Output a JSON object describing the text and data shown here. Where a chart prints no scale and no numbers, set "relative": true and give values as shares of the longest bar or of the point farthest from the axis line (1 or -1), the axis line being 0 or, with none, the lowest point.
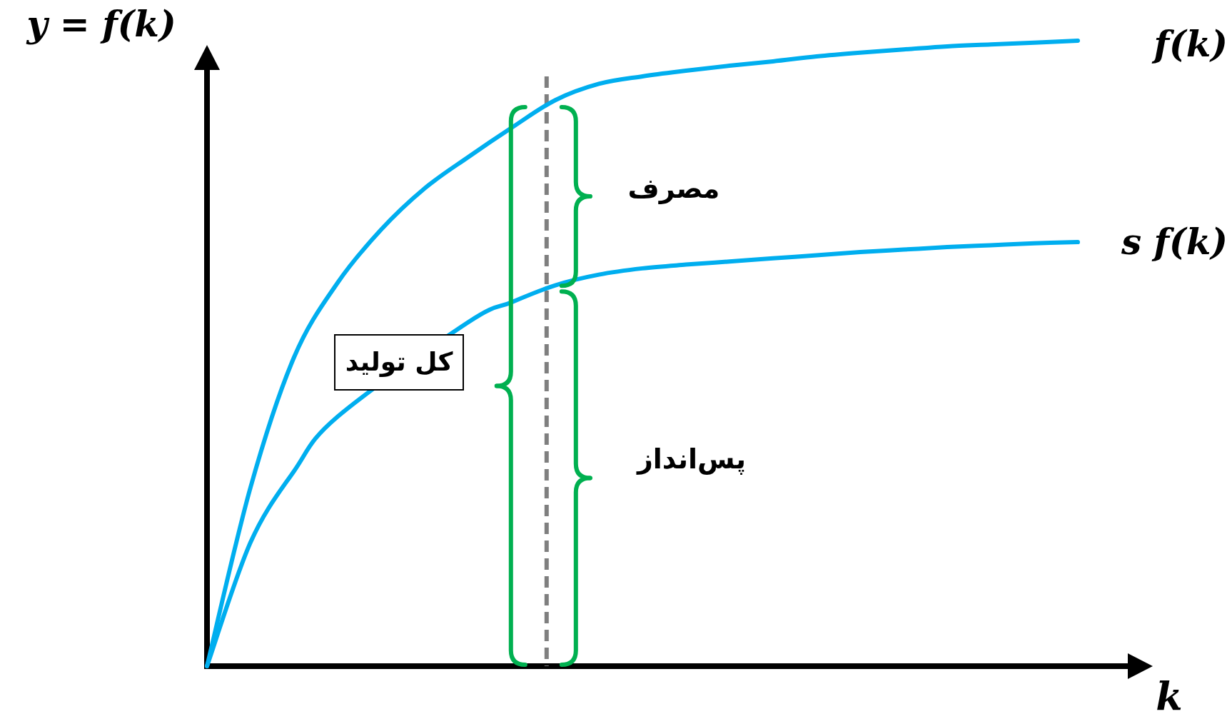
{
  "chart_data": {
    "type": "line",
    "relative": true,
    "ylabel": "y = f(k)",
    "xlabel": "k",
    "categories": [
      null,
      null,
      null,
      null,
      null,
      null,
      null,
      null,
      null,
      null,
      null,
      null,
      null,
      null,
      null,
      null,
      null,
      null,
      null,
      null,
      null
    ],
    "series": [
      {
        "name": "f(k)",
        "color": "#00aeef",
        "values": [
          0,
          0.286,
          0.494,
          0.613,
          0.698,
          0.764,
          0.814,
          0.861,
          0.905,
          0.931,
          0.943,
          0.952,
          0.96,
          0.967,
          0.975,
          0.981,
          0.986,
          0.991,
          0.994,
          0.997,
          1
        ]
      },
      {
        "name": "s f(k)",
        "color": "#00aeef",
        "values": [
          0,
          0.198,
          0.312,
          0.399,
          null,
          null,
          0.55,
          0.582,
          0.609,
          0.626,
          0.636,
          0.642,
          0.647,
          0.652,
          0.657,
          0.662,
          0.666,
          0.67,
          0.673,
          0.676,
          0.678
        ]
      }
    ],
    "annotations": [
      "مصرف",
      "پس‌انداز",
      "کل تولید"
    ]
  }
}
